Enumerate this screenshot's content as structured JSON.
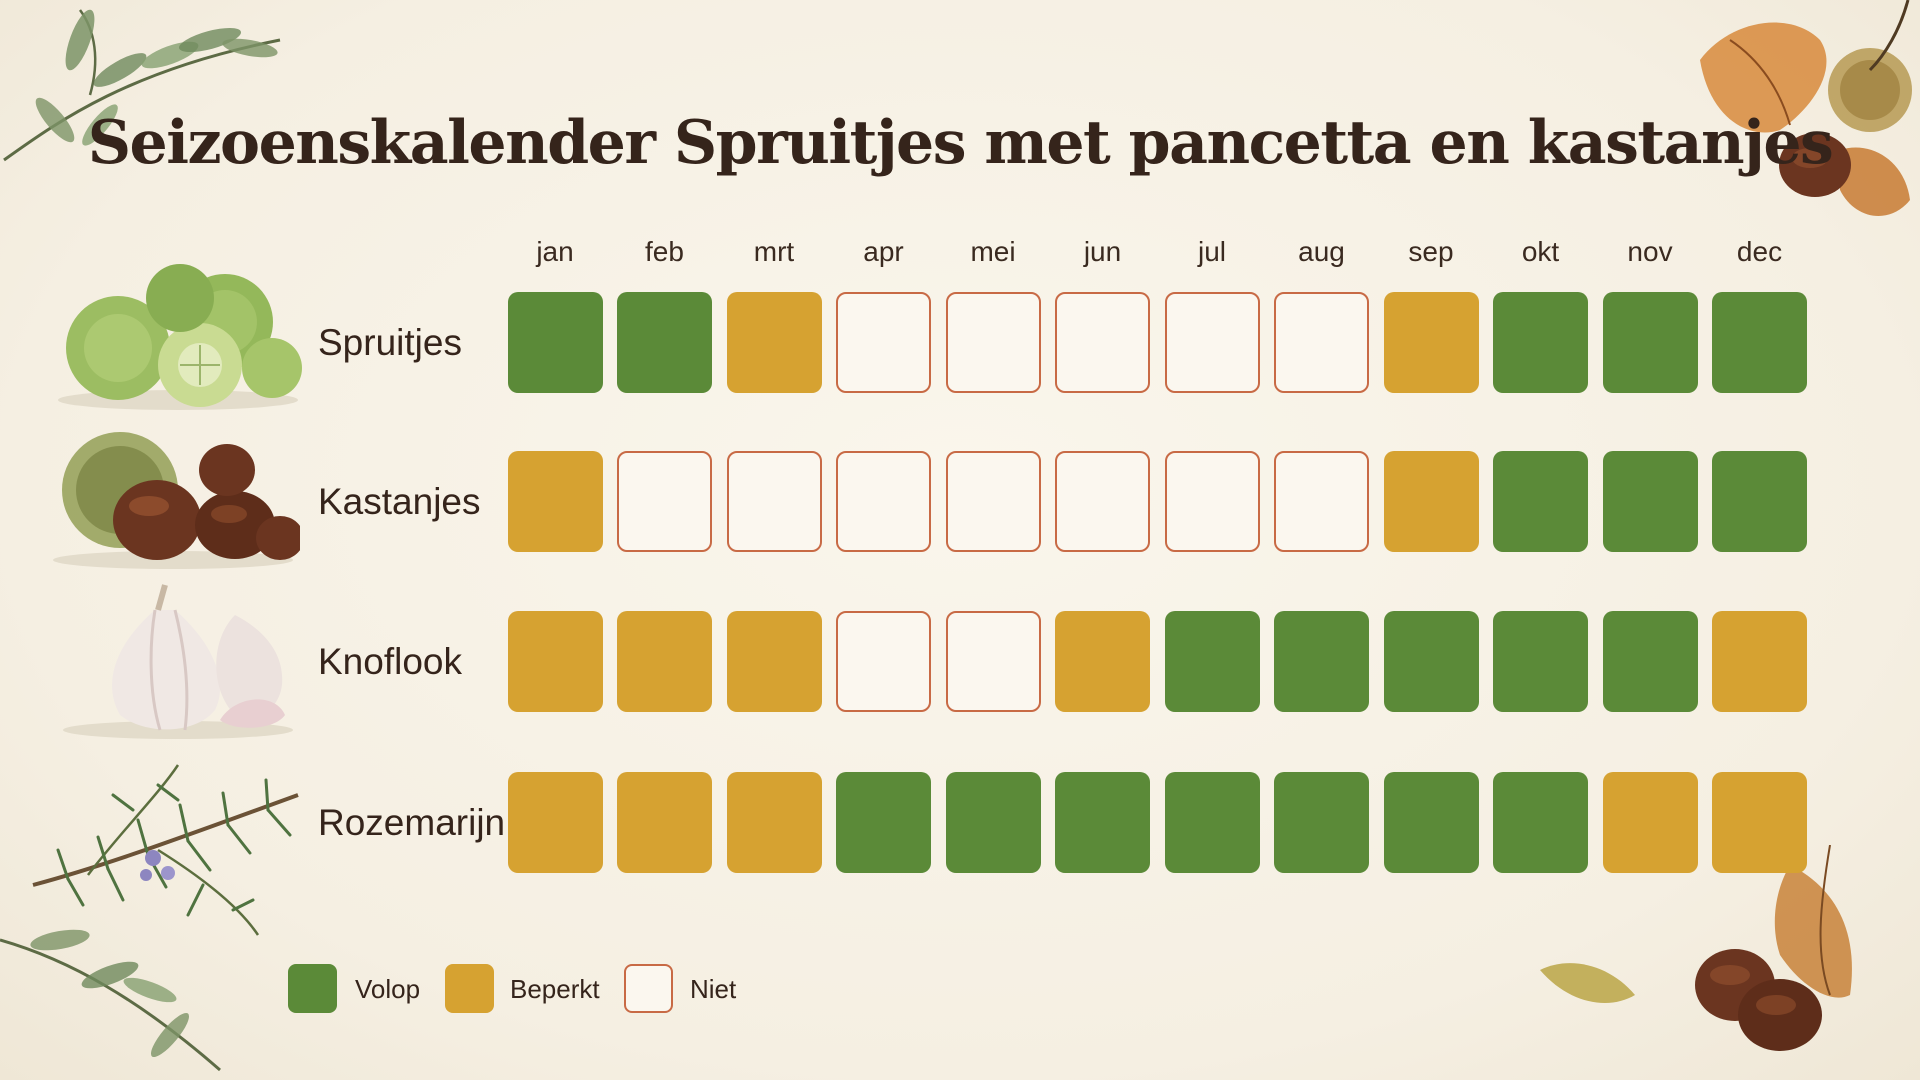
{
  "chart_data": {
    "type": "heatmap",
    "title": "Seizoenskalender Spruitjes met pancetta en kastanjes",
    "months": [
      "jan",
      "feb",
      "mrt",
      "apr",
      "mei",
      "jun",
      "jul",
      "aug",
      "sep",
      "okt",
      "nov",
      "dec"
    ],
    "rows": [
      {
        "name": "Spruitjes",
        "icon": "brussels-sprouts-illustration",
        "values": [
          "volop",
          "volop",
          "beperkt",
          "niet",
          "niet",
          "niet",
          "niet",
          "niet",
          "beperkt",
          "volop",
          "volop",
          "volop"
        ]
      },
      {
        "name": "Kastanjes",
        "icon": "chestnuts-illustration",
        "values": [
          "beperkt",
          "niet",
          "niet",
          "niet",
          "niet",
          "niet",
          "niet",
          "niet",
          "beperkt",
          "volop",
          "volop",
          "volop"
        ]
      },
      {
        "name": "Knoflook",
        "icon": "garlic-illustration",
        "values": [
          "beperkt",
          "beperkt",
          "beperkt",
          "niet",
          "niet",
          "beperkt",
          "volop",
          "volop",
          "volop",
          "volop",
          "volop",
          "beperkt"
        ]
      },
      {
        "name": "Rozemarijn",
        "icon": "rosemary-illustration",
        "values": [
          "beperkt",
          "beperkt",
          "beperkt",
          "volop",
          "volop",
          "volop",
          "volop",
          "volop",
          "volop",
          "volop",
          "beperkt",
          "beperkt"
        ]
      }
    ],
    "legend": [
      {
        "key": "volop",
        "label": "Volop"
      },
      {
        "key": "beperkt",
        "label": "Beperkt"
      },
      {
        "key": "niet",
        "label": "Niet"
      }
    ],
    "colors": {
      "volop": "#5b8a38",
      "beperkt": "#d6a231",
      "niet_border": "#c86a45",
      "niet_fill": "#fbf7ef"
    }
  },
  "decorations": [
    "olive-branch-icon",
    "oak-leaves-icon",
    "chestnut-icon",
    "autumn-leaf-icon"
  ]
}
